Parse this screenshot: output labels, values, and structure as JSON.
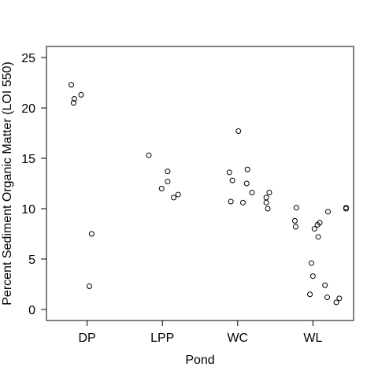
{
  "chart_data": {
    "type": "scatter",
    "title": "",
    "xlabel": "Pond",
    "ylabel": "Percent Sediment Organic Matter (LOI 550)",
    "categories": [
      "DP",
      "LPP",
      "WC",
      "WL"
    ],
    "ylim": [
      -1.1,
      26.1
    ],
    "yticks": [
      0,
      5,
      10,
      15,
      20,
      25
    ],
    "grid": false,
    "legend": "none",
    "marker": "open-circle",
    "colors": {
      "point": "#000000",
      "axis": "#000000",
      "background": "#ffffff"
    },
    "series": [
      {
        "category": "DP",
        "points": [
          {
            "offset": -0.21,
            "y": 22.3
          },
          {
            "offset": -0.17,
            "y": 20.9
          },
          {
            "offset": -0.18,
            "y": 20.5
          },
          {
            "offset": -0.08,
            "y": 21.3
          },
          {
            "offset": 0.06,
            "y": 7.5
          },
          {
            "offset": 0.03,
            "y": 2.3
          }
        ]
      },
      {
        "category": "LPP",
        "points": [
          {
            "offset": -0.18,
            "y": 15.3
          },
          {
            "offset": 0.07,
            "y": 13.7
          },
          {
            "offset": 0.07,
            "y": 12.7
          },
          {
            "offset": -0.01,
            "y": 12.0
          },
          {
            "offset": 0.21,
            "y": 11.4
          },
          {
            "offset": 0.15,
            "y": 11.1
          }
        ]
      },
      {
        "category": "WC",
        "points": [
          {
            "offset": 0.01,
            "y": 17.7
          },
          {
            "offset": 0.13,
            "y": 13.9
          },
          {
            "offset": -0.11,
            "y": 13.6
          },
          {
            "offset": -0.07,
            "y": 12.8
          },
          {
            "offset": 0.12,
            "y": 12.5
          },
          {
            "offset": 0.19,
            "y": 11.6
          },
          {
            "offset": 0.42,
            "y": 11.6
          },
          {
            "offset": 0.38,
            "y": 11.1
          },
          {
            "offset": -0.09,
            "y": 10.7
          },
          {
            "offset": 0.07,
            "y": 10.6
          },
          {
            "offset": 0.38,
            "y": 10.6
          },
          {
            "offset": 0.4,
            "y": 10.0
          }
        ]
      },
      {
        "category": "WL",
        "points": [
          {
            "offset": -0.22,
            "y": 10.1
          },
          {
            "offset": 0.44,
            "y": 10.1
          },
          {
            "offset": 0.44,
            "y": 10.0
          },
          {
            "offset": 0.2,
            "y": 9.7
          },
          {
            "offset": -0.24,
            "y": 8.8
          },
          {
            "offset": 0.09,
            "y": 8.6
          },
          {
            "offset": 0.06,
            "y": 8.4
          },
          {
            "offset": -0.23,
            "y": 8.2
          },
          {
            "offset": 0.02,
            "y": 8.0
          },
          {
            "offset": 0.07,
            "y": 7.2
          },
          {
            "offset": -0.02,
            "y": 4.6
          },
          {
            "offset": 0.0,
            "y": 3.3
          },
          {
            "offset": 0.16,
            "y": 2.4
          },
          {
            "offset": -0.04,
            "y": 1.5
          },
          {
            "offset": 0.19,
            "y": 1.2
          },
          {
            "offset": 0.35,
            "y": 1.1
          },
          {
            "offset": 0.31,
            "y": 0.7
          }
        ]
      }
    ]
  }
}
